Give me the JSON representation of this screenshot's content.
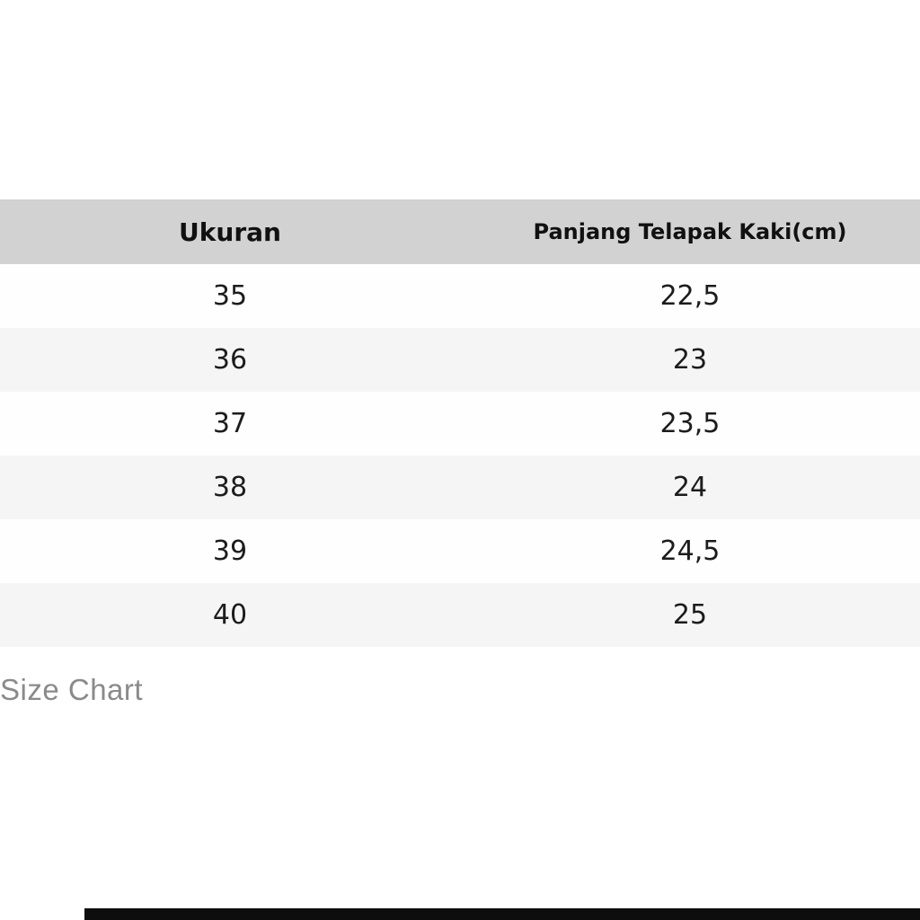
{
  "table": {
    "columns": [
      {
        "label": "Ukuran"
      },
      {
        "label": "Panjang Telapak Kaki(cm)"
      }
    ],
    "rows": [
      {
        "size": "35",
        "length": "22,5"
      },
      {
        "size": "36",
        "length": "23"
      },
      {
        "size": "37",
        "length": "23,5"
      },
      {
        "size": "38",
        "length": "24"
      },
      {
        "size": "39",
        "length": "24,5"
      },
      {
        "size": "40",
        "length": "25"
      }
    ]
  },
  "caption": "Size Chart",
  "colors": {
    "header_bg": "#d2d2d2",
    "row_stripe_bg": "#f5f5f5",
    "row_bg": "#fefefe",
    "text": "#1c1c1c",
    "caption_text": "#8a8a8a",
    "bottom_bar": "#0d0d0d"
  }
}
